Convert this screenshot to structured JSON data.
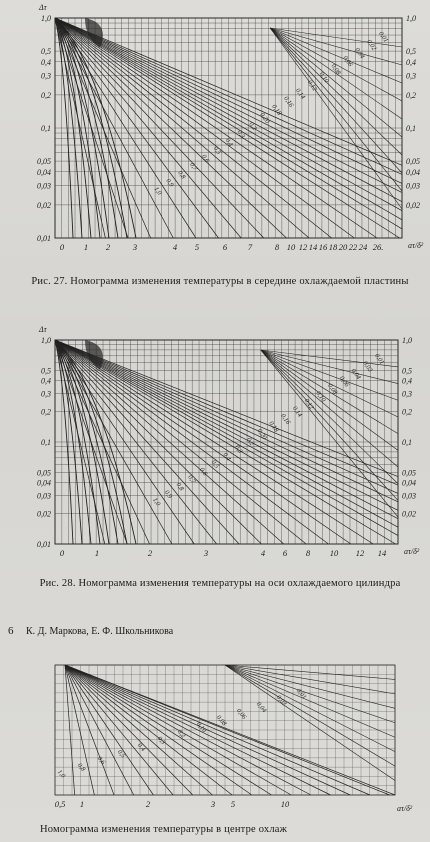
{
  "page": {
    "page_number": "6",
    "running_head": "К. Д. Маркова, Е. Ф. Школьникова"
  },
  "figures": [
    {
      "id": "fig27",
      "caption": "Рис. 27. Номограмма изменения температуры в середине охлаждаемой пластины",
      "y_ticks_left": [
        "1,0",
        "0,5",
        "0,4",
        "0,3",
        "0,2",
        "0,1",
        "0,05",
        "0,04",
        "0,03",
        "0,02",
        "0,01"
      ],
      "y_ticks_right": [
        "1,0",
        "0,5",
        "0,4",
        "0,3",
        "0,2",
        "0,1",
        "0,05",
        "0,04",
        "0,03",
        "0,02"
      ],
      "x_ticks": [
        "0",
        "1",
        "2",
        "3",
        "4",
        "5",
        "6",
        "7",
        "8",
        "10",
        "12",
        "14",
        "16",
        "18",
        "20",
        "22",
        "24",
        "26."
      ],
      "y_label": "Δτ",
      "x_label": "aτ/δ²",
      "curve_labels": [
        "0,01",
        "0,02",
        "0,04",
        "0,06",
        "0,08",
        "0,10",
        "0,12",
        "0,14",
        "0,16",
        "0,18",
        "0,20",
        "0,2",
        "0,3",
        "0,4",
        "0,5",
        "0,6",
        "0,7",
        "0,8",
        "0,9",
        "1,0"
      ]
    },
    {
      "id": "fig28",
      "caption": "Рис. 28. Номограмма изменения температуры на оси охлаждаемого цилиндра",
      "y_ticks_left": [
        "1,0",
        "0,5",
        "0,4",
        "0,3",
        "0,2",
        "0,1",
        "0,05",
        "0,04",
        "0,03",
        "0,02",
        "0,01"
      ],
      "y_ticks_right": [
        "1,0",
        "0,5",
        "0,4",
        "0,3",
        "0,2",
        "0,1",
        "0,05",
        "0,04",
        "0,03",
        "0,02"
      ],
      "x_ticks": [
        "0",
        "1",
        "2",
        "3",
        "4",
        "6",
        "8",
        "10",
        "12",
        "14"
      ],
      "y_label": "Δτ",
      "x_label": "aτ/δ²",
      "curve_labels": [
        "0,01",
        "0,02",
        "0,04",
        "0,06",
        "0,08",
        "0,10",
        "0,12",
        "0,14",
        "0,16",
        "0,18",
        "0,20",
        "0,2",
        "0,3",
        "0,4",
        "0,5",
        "0,6",
        "0,7",
        "0,8",
        "0,9",
        "1,0"
      ]
    },
    {
      "id": "fig29",
      "caption": "Номограмма изменения температуры в центре охлаж",
      "x_ticks": [
        "0,5",
        "1",
        "2",
        "3",
        "5",
        "10"
      ],
      "x_label": "aτ/δ²",
      "curve_labels": [
        "0,01",
        "0,02",
        "0,04",
        "0,06",
        "0,08",
        "0,10",
        "0,2",
        "0,3",
        "0,4",
        "0,5",
        "0,6",
        "0,8",
        "1,0"
      ]
    }
  ]
}
